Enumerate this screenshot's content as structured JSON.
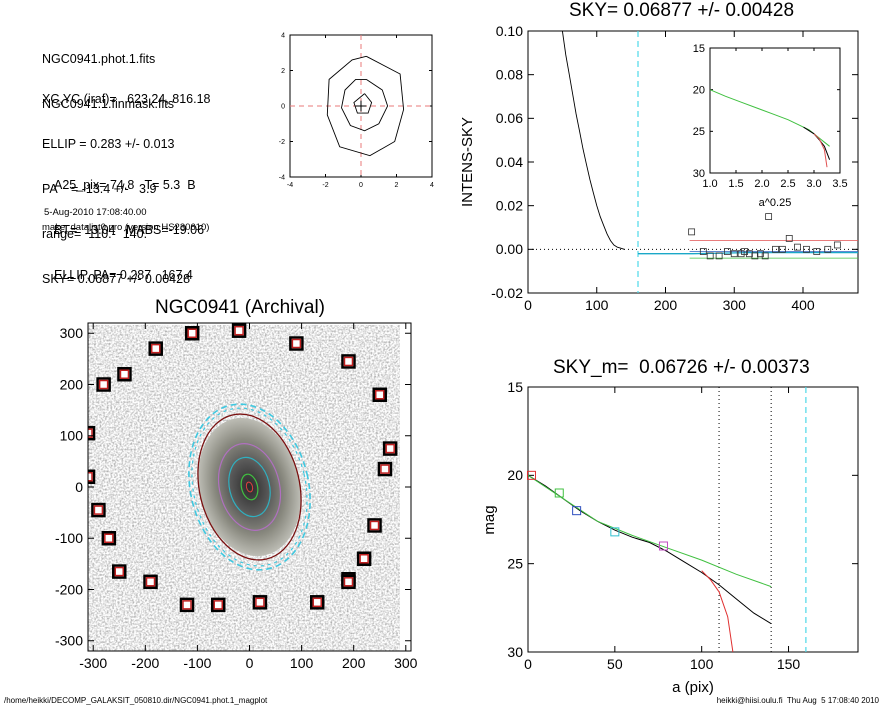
{
  "info": {
    "lines_a": [
      "NGC0941.phot.1.fits",
      "NGC0941.1.finmask.fits"
    ],
    "lines_b": [
      "XC,YC (iraf)=   623.24, 816.18",
      "ELLIP = 0.283 +/- 0.013",
      "PA    = -13.4 +/-   3.9",
      "range=  110.-  140.",
      "SKY= 0.06877 +/- 0.00428"
    ],
    "lines_c": [
      "A25_pix= 74.8   T= 5.3  B",
      "BT=  13.04   MABS=-19.06",
      "ELLIP, PA= 0.287   167.4"
    ],
    "date": "5-Aug-2010 17:08:40.00",
    "program": "make_datalist0.pro (version HS230610)"
  },
  "footer": {
    "path": "/home/heikki/DECOMP_GALAKSIT_050810.dir/NGC0941.phot.1_magplot",
    "user": "heikki@hiisi.oulu.fi  Thu Aug  5 17:08:40 2010"
  },
  "chart_data": [
    {
      "type": "line",
      "panel": "contour-inset",
      "title": "",
      "xlim": [
        -4,
        4
      ],
      "ylim": [
        -4,
        4
      ],
      "xticks": [
        "-4",
        "-2",
        "0",
        "2",
        "4"
      ],
      "yticks": [
        "-4",
        "-2",
        "0",
        "2",
        "4"
      ],
      "contours": [
        {
          "x": [
            0.3,
            1.2,
            1.5,
            1.0,
            0.2,
            -0.6,
            -1.1,
            -0.9,
            -0.3,
            0.3
          ],
          "y": [
            1.5,
            0.9,
            0.0,
            -1.0,
            -1.4,
            -1.1,
            -0.1,
            0.9,
            1.5,
            1.5
          ]
        },
        {
          "x": [
            0.3,
            2.2,
            2.4,
            1.9,
            0.5,
            -1.2,
            -1.9,
            -1.8,
            -0.5,
            0.3
          ],
          "y": [
            2.8,
            1.8,
            -0.2,
            -2.0,
            -2.8,
            -2.3,
            -0.5,
            1.5,
            2.6,
            2.8
          ]
        },
        {
          "x": [
            0.2,
            0.6,
            0.4,
            -0.2,
            -0.4,
            0.2
          ],
          "y": [
            0.7,
            0.2,
            -0.4,
            -0.4,
            0.2,
            0.7
          ]
        }
      ]
    },
    {
      "type": "scatter",
      "panel": "sky",
      "title": "SKY= 0.06877 +/- 0.00428",
      "xlabel": "",
      "ylabel": "INTENS-SKY",
      "xlim": [
        0,
        480
      ],
      "ylim": [
        -0.02,
        0.1
      ],
      "xticks": [
        "0",
        "100",
        "200",
        "300",
        "400"
      ],
      "yticks": [
        "-0.02",
        "0.00",
        "0.02",
        "0.04",
        "0.06",
        "0.08",
        "0.10"
      ],
      "vline_x": 160,
      "series": [
        {
          "style": "profile",
          "x": [
            50,
            55,
            60,
            65,
            70,
            75,
            80,
            85,
            90,
            95,
            100,
            105,
            110,
            115,
            120,
            125,
            130,
            135,
            140
          ],
          "y": [
            0.1,
            0.089,
            0.08,
            0.071,
            0.062,
            0.054,
            0.046,
            0.039,
            0.032,
            0.026,
            0.02,
            0.015,
            0.011,
            0.007,
            0.004,
            0.002,
            0.001,
            0.0005,
            0.0
          ]
        },
        {
          "style": "squares",
          "x": [
            238,
            255,
            265,
            278,
            290,
            300,
            310,
            315,
            322,
            330,
            338,
            345,
            350,
            360,
            370,
            380,
            392,
            405,
            420,
            436,
            450
          ],
          "y": [
            0.008,
            -0.001,
            -0.003,
            -0.003,
            -0.001,
            -0.002,
            -0.002,
            -0.001,
            -0.002,
            -0.003,
            -0.002,
            -0.003,
            0.015,
            0.0,
            0.0,
            0.005,
            0.001,
            0.0,
            -0.001,
            0.0,
            0.002
          ]
        },
        {
          "style": "model",
          "x": [
            160,
            240,
            320,
            400,
            480
          ],
          "y": [
            -0.002,
            -0.002,
            -0.0015,
            -0.0015,
            -0.0015
          ]
        }
      ],
      "inset": {
        "xlabel": "a^0.25",
        "xlim": [
          1.0,
          3.5
        ],
        "ylim": [
          30,
          15
        ],
        "xticks": [
          "1.0",
          "1.5",
          "2.0",
          "2.5",
          "3.0",
          "3.5"
        ],
        "yticks": [
          "15",
          "20",
          "25",
          "30"
        ],
        "x": [
          1.0,
          1.3,
          1.6,
          1.9,
          2.2,
          2.5,
          2.7,
          2.9,
          3.0,
          3.1,
          3.2,
          3.3
        ],
        "y": [
          20.0,
          20.8,
          21.5,
          22.2,
          22.9,
          23.6,
          24.2,
          24.8,
          25.3,
          25.8,
          26.3,
          26.8
        ]
      }
    },
    {
      "type": "scatter",
      "panel": "image",
      "title": "NGC0941 (Archival)",
      "xlim": [
        -310,
        310
      ],
      "ylim": [
        -320,
        320
      ],
      "xticks": [
        "-300",
        "-200",
        "-100",
        "0",
        "100",
        "200",
        "300"
      ],
      "yticks": [
        "-300",
        "-200",
        "-100",
        "0",
        "100",
        "200",
        "300"
      ],
      "ellipse": {
        "center": [
          0,
          0
        ],
        "a": 75,
        "ellip": 0.283,
        "pa": -13.4
      },
      "mask_boxes": {
        "x": [
          -110,
          -20,
          90,
          -180,
          190,
          -280,
          -240,
          250,
          -310,
          270,
          -310,
          260,
          -290,
          240,
          -270,
          220,
          -250,
          190,
          -190,
          190,
          -120,
          -60,
          20,
          130
        ],
        "y": [
          300,
          305,
          280,
          270,
          245,
          200,
          220,
          180,
          105,
          75,
          20,
          35,
          -45,
          -75,
          -100,
          -140,
          -165,
          -180,
          -185,
          -185,
          -230,
          -230,
          -225,
          -225
        ]
      }
    },
    {
      "type": "line",
      "panel": "mag",
      "title": "SKY_m=  0.06726 +/- 0.00373",
      "xlabel": "a (pix)",
      "ylabel": "mag",
      "xlim": [
        0,
        190
      ],
      "ylim": [
        30,
        15
      ],
      "xticks": [
        "0",
        "50",
        "100",
        "150"
      ],
      "yticks": [
        "15",
        "20",
        "25",
        "30"
      ],
      "vlines": [
        110,
        140,
        160
      ],
      "series": [
        {
          "style": "black",
          "x": [
            0,
            10,
            20,
            30,
            40,
            50,
            60,
            70,
            80,
            90,
            100,
            110,
            120,
            130,
            140
          ],
          "y": [
            20.0,
            20.6,
            21.3,
            22.0,
            22.6,
            23.1,
            23.5,
            23.8,
            24.3,
            24.9,
            25.5,
            26.2,
            27.0,
            27.8,
            28.4
          ]
        },
        {
          "style": "green",
          "x": [
            0,
            20,
            40,
            60,
            80,
            100,
            120,
            140
          ],
          "y": [
            20.0,
            21.3,
            22.6,
            23.4,
            24.1,
            24.8,
            25.6,
            26.3
          ]
        },
        {
          "style": "red",
          "x": [
            100,
            105,
            110,
            115,
            118
          ],
          "y": [
            25.4,
            25.9,
            26.6,
            28.0,
            30.0
          ]
        },
        {
          "style": "markers",
          "x": [
            2,
            18,
            28,
            50,
            78
          ],
          "y": [
            20.0,
            21.0,
            22.0,
            23.2,
            24.0
          ]
        }
      ]
    }
  ]
}
